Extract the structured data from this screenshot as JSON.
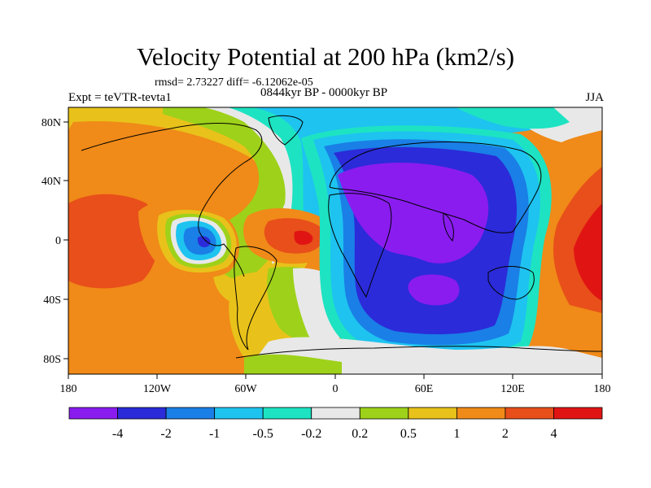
{
  "header": {
    "title": "Velocity Potential at 200 hPa (km2/s)",
    "stats": "rmsd= 2.73227  diff= -6.12062e-05",
    "experiment": "Expt = teVTR-tevta1",
    "period": "0844kyr BP - 0000kyr BP",
    "season": "JJA"
  },
  "axes": {
    "lat_labels": [
      "80N",
      "40N",
      "0",
      "40S",
      "80S"
    ],
    "lon_labels": [
      "180",
      "120W",
      "60W",
      "0",
      "60E",
      "120E",
      "180"
    ]
  },
  "colorbar": {
    "labels": [
      "-4",
      "-2",
      "-1",
      "-0.5",
      "-0.2",
      "0.2",
      "0.5",
      "1",
      "2",
      "4"
    ],
    "colors": [
      "#8a1cf0",
      "#2b2bd9",
      "#1a7fe6",
      "#1ec3f0",
      "#1de3c2",
      "#e8e8e8",
      "#9ed11a",
      "#e8c21a",
      "#f08a18",
      "#e84f1a",
      "#e11414"
    ]
  }
}
